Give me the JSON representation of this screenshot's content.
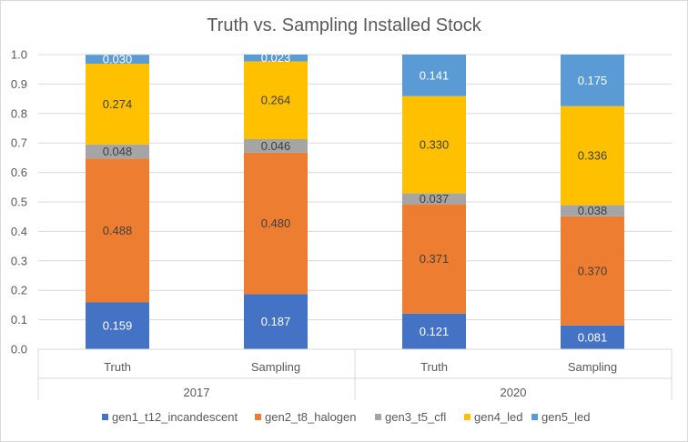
{
  "chart_data": {
    "type": "bar",
    "stacked": true,
    "title": "Truth vs. Sampling Installed Stock",
    "xlabel": "",
    "ylabel": "",
    "ylim": [
      0,
      1
    ],
    "yticks": [
      "0.0",
      "0.1",
      "0.2",
      "0.3",
      "0.4",
      "0.5",
      "0.6",
      "0.7",
      "0.8",
      "0.9",
      "1.0"
    ],
    "grid": true,
    "legend_position": "bottom",
    "categories": [
      "Truth",
      "Sampling",
      "Truth",
      "Sampling"
    ],
    "groups": [
      {
        "label": "2017",
        "categories": [
          0,
          1
        ]
      },
      {
        "label": "2020",
        "categories": [
          2,
          3
        ]
      }
    ],
    "series": [
      {
        "name": "gen1_t12_incandescent",
        "color": "#4472c4",
        "label_color": "#ffffff",
        "values": [
          0.159,
          0.187,
          0.121,
          0.081
        ],
        "labels": [
          "0.159",
          "0.187",
          "0.121",
          "0.081"
        ]
      },
      {
        "name": "gen2_t8_halogen",
        "color": "#ed7d31",
        "label_color": "#404040",
        "values": [
          0.488,
          0.48,
          0.371,
          0.37
        ],
        "labels": [
          "0.488",
          "0.480",
          "0.371",
          "0.370"
        ]
      },
      {
        "name": "gen3_t5_cfl",
        "color": "#a5a5a5",
        "label_color": "#404040",
        "values": [
          0.048,
          0.046,
          0.037,
          0.038
        ],
        "labels": [
          "0.048",
          "0.046",
          "0.037",
          "0.038"
        ]
      },
      {
        "name": "gen4_led",
        "color": "#ffc000",
        "label_color": "#404040",
        "values": [
          0.274,
          0.264,
          0.33,
          0.336
        ],
        "labels": [
          "0.274",
          "0.264",
          "0.330",
          "0.336"
        ]
      },
      {
        "name": "gen5_led",
        "color": "#5b9bd5",
        "label_color": "#ffffff",
        "values": [
          0.03,
          0.023,
          0.141,
          0.175
        ],
        "labels": [
          "0.030",
          "0.023",
          "0.141",
          "0.175"
        ]
      }
    ]
  }
}
